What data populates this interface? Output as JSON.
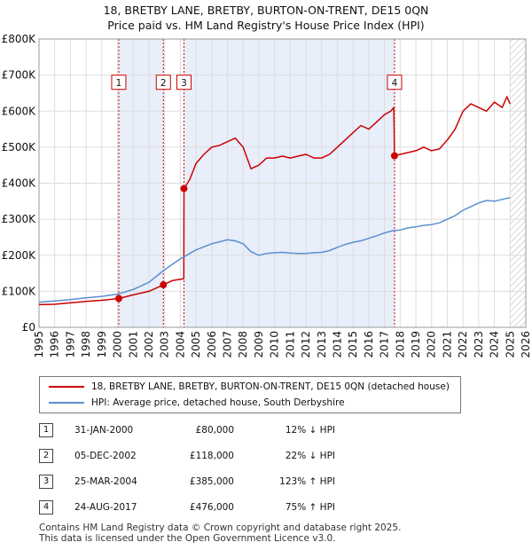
{
  "header": {
    "title_line1": "18, BRETBY LANE, BRETBY, BURTON-ON-TRENT, DE15 0QN",
    "title_line2": "Price paid vs. HM Land Registry's House Price Index (HPI)"
  },
  "chart_data": {
    "type": "line",
    "title": "Price paid vs. HM Land Registry's House Price Index (HPI)",
    "xlim": [
      1995,
      2026
    ],
    "ylim": [
      0,
      800000
    ],
    "y_ticks": [
      0,
      100000,
      200000,
      300000,
      400000,
      500000,
      600000,
      700000,
      800000
    ],
    "y_tick_labels": [
      "£0",
      "£100K",
      "£200K",
      "£300K",
      "£400K",
      "£500K",
      "£600K",
      "£700K",
      "£800K"
    ],
    "x_ticks": [
      1995,
      1996,
      1997,
      1998,
      1999,
      2000,
      2001,
      2002,
      2003,
      2004,
      2005,
      2006,
      2007,
      2008,
      2009,
      2010,
      2011,
      2012,
      2013,
      2014,
      2015,
      2016,
      2017,
      2018,
      2019,
      2020,
      2021,
      2022,
      2023,
      2024,
      2025,
      2026
    ],
    "shaded_periods": [
      [
        2000.08,
        2002.92
      ],
      [
        2004.23,
        2017.64
      ]
    ],
    "hatched_after": 2025.0,
    "colors": {
      "property": "#cc0000",
      "hpi": "#5b8fd0",
      "shade": "#e8eefa",
      "grid": "#dddddd"
    },
    "series": [
      {
        "name": "18, BRETBY LANE, BRETBY, BURTON-ON-TRENT, DE15 0QN (detached house)",
        "color": "#cc0000",
        "x": [
          1995.0,
          1996.0,
          1997.0,
          1998.0,
          1999.0,
          2000.08,
          2001.0,
          2002.0,
          2002.92,
          2003.5,
          2004.22,
          2004.23,
          2004.6,
          2005.0,
          2005.5,
          2006.0,
          2006.5,
          2007.0,
          2007.5,
          2008.0,
          2008.5,
          2009.0,
          2009.5,
          2010.0,
          2010.5,
          2011.0,
          2011.5,
          2012.0,
          2012.5,
          2013.0,
          2013.5,
          2014.0,
          2014.5,
          2015.0,
          2015.5,
          2016.0,
          2016.5,
          2017.0,
          2017.4,
          2017.6,
          2017.64,
          2018.0,
          2018.5,
          2019.0,
          2019.5,
          2020.0,
          2020.5,
          2021.0,
          2021.5,
          2022.0,
          2022.5,
          2023.0,
          2023.5,
          2024.0,
          2024.5,
          2024.8,
          2025.0
        ],
        "values": [
          63000,
          64000,
          68000,
          72000,
          75000,
          80000,
          90000,
          100000,
          118000,
          130000,
          135000,
          385000,
          410000,
          455000,
          480000,
          500000,
          505000,
          515000,
          525000,
          500000,
          440000,
          450000,
          470000,
          470000,
          475000,
          470000,
          475000,
          480000,
          470000,
          470000,
          480000,
          500000,
          520000,
          540000,
          560000,
          550000,
          570000,
          590000,
          600000,
          610000,
          476000,
          480000,
          485000,
          490000,
          500000,
          490000,
          495000,
          520000,
          550000,
          600000,
          620000,
          610000,
          600000,
          625000,
          610000,
          640000,
          620000
        ]
      },
      {
        "name": "HPI: Average price, detached house, South Derbyshire",
        "color": "#5b8fd0",
        "x": [
          1995.0,
          1996.0,
          1997.0,
          1998.0,
          1999.0,
          2000.0,
          2001.0,
          2002.0,
          2003.0,
          2004.0,
          2005.0,
          2006.0,
          2007.0,
          2007.5,
          2008.0,
          2008.5,
          2009.0,
          2009.5,
          2010.0,
          2010.5,
          2011.0,
          2011.5,
          2012.0,
          2012.5,
          2013.0,
          2013.5,
          2014.0,
          2014.5,
          2015.0,
          2015.5,
          2016.0,
          2016.5,
          2017.0,
          2017.5,
          2018.0,
          2018.5,
          2019.0,
          2019.5,
          2020.0,
          2020.5,
          2021.0,
          2021.5,
          2022.0,
          2022.5,
          2023.0,
          2023.5,
          2024.0,
          2024.5,
          2025.0
        ],
        "values": [
          70000,
          73000,
          77000,
          82000,
          86000,
          92000,
          105000,
          125000,
          160000,
          190000,
          215000,
          232000,
          243000,
          240000,
          232000,
          210000,
          200000,
          205000,
          207000,
          208000,
          206000,
          205000,
          205000,
          207000,
          208000,
          213000,
          222000,
          230000,
          236000,
          240000,
          247000,
          254000,
          262000,
          268000,
          270000,
          276000,
          279000,
          283000,
          285000,
          290000,
          300000,
          310000,
          325000,
          335000,
          345000,
          352000,
          350000,
          355000,
          360000
        ]
      }
    ],
    "sales": [
      {
        "label": "1",
        "x": 2000.08,
        "value": 80000
      },
      {
        "label": "2",
        "x": 2002.92,
        "value": 118000
      },
      {
        "label": "3",
        "x": 2004.23,
        "value": 385000
      },
      {
        "label": "4",
        "x": 2017.64,
        "value": 476000
      }
    ],
    "box_value": 680000
  },
  "legend": {
    "property_label": "18, BRETBY LANE, BRETBY, BURTON-ON-TRENT, DE15 0QN (detached house)",
    "hpi_label": "HPI: Average price, detached house, South Derbyshire"
  },
  "sales_table": [
    {
      "num": "1",
      "date": "31-JAN-2000",
      "price": "£80,000",
      "hpi": "12% ↓ HPI"
    },
    {
      "num": "2",
      "date": "05-DEC-2002",
      "price": "£118,000",
      "hpi": "22% ↓ HPI"
    },
    {
      "num": "3",
      "date": "25-MAR-2004",
      "price": "£385,000",
      "hpi": "123% ↑ HPI"
    },
    {
      "num": "4",
      "date": "24-AUG-2017",
      "price": "£476,000",
      "hpi": "75% ↑ HPI"
    }
  ],
  "footer": {
    "line1": "Contains HM Land Registry data © Crown copyright and database right 2025.",
    "line2": "This data is licensed under the Open Government Licence v3.0."
  }
}
